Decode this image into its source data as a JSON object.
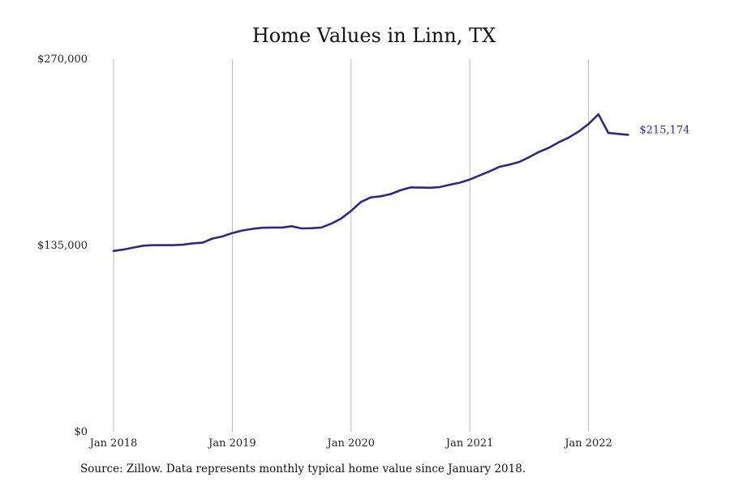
{
  "chart_data": {
    "type": "line",
    "title": "Home Values in Linn, TX",
    "xlabel": "",
    "ylabel": "",
    "x_tick_labels": [
      "Jan 2018",
      "Jan 2019",
      "Jan 2020",
      "Jan 2021",
      "Jan 2022"
    ],
    "y_tick_labels": [
      "$270,000",
      "$135,000",
      "$0"
    ],
    "y_ticks": [
      270000,
      135000,
      0
    ],
    "ylim": [
      0,
      270000
    ],
    "xlim": [
      "2018-01",
      "2022-12"
    ],
    "grid": "vertical",
    "legend": "none",
    "line_color": "#2e2a7e",
    "end_label": "$215,174",
    "series": [
      {
        "x": [
          "2018-01",
          "2018-02",
          "2018-03",
          "2018-04",
          "2018-05",
          "2018-06",
          "2018-07",
          "2018-08",
          "2018-09",
          "2018-10",
          "2018-11",
          "2018-12",
          "2019-01",
          "2019-02",
          "2019-03",
          "2019-04",
          "2019-05",
          "2019-06",
          "2019-07",
          "2019-08",
          "2019-09",
          "2019-10",
          "2019-11",
          "2019-12",
          "2020-01",
          "2020-02",
          "2020-03",
          "2020-04",
          "2020-05",
          "2020-06",
          "2020-07",
          "2020-08",
          "2020-09",
          "2020-10",
          "2020-11",
          "2020-12",
          "2021-01",
          "2021-02",
          "2021-03",
          "2021-04",
          "2021-05",
          "2021-06",
          "2021-07",
          "2021-08",
          "2021-09",
          "2021-10",
          "2021-11",
          "2021-12",
          "2022-01",
          "2022-02",
          "2022-03",
          "2022-04",
          "2022-05"
        ],
        "values": [
          131000,
          132000,
          133500,
          134800,
          135200,
          135200,
          135200,
          135500,
          136500,
          137000,
          140000,
          141500,
          144000,
          145800,
          147000,
          147800,
          148000,
          148000,
          148900,
          147300,
          147500,
          148000,
          150800,
          154500,
          160000,
          166500,
          169800,
          170600,
          172200,
          175000,
          177000,
          176900,
          176800,
          177300,
          179000,
          180500,
          182800,
          185700,
          188700,
          192000,
          193500,
          195500,
          199000,
          202800,
          205800,
          209800,
          213200,
          217500,
          223000,
          230000,
          216500,
          215800,
          215174
        ]
      }
    ]
  },
  "source": {
    "text": "Source: Zillow. Data represents monthly typical home value since January 2018."
  }
}
